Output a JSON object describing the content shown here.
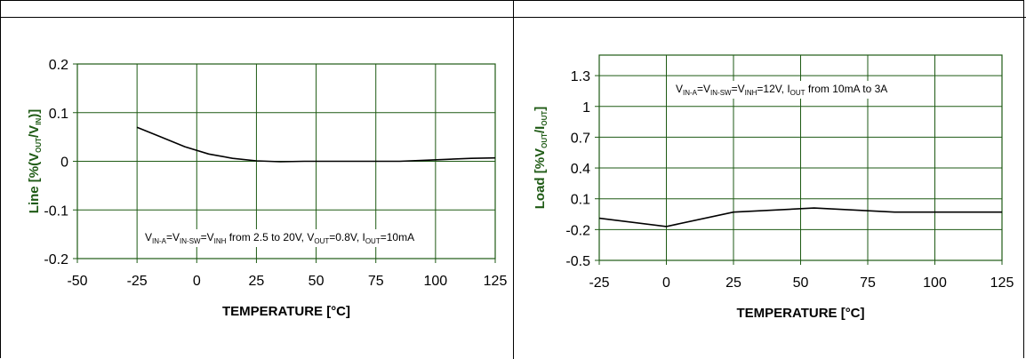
{
  "colors": {
    "grid": "#1e5a14",
    "line": "#000000",
    "axis_title": "#1e5a14"
  },
  "chart_data": [
    {
      "type": "line",
      "xlabel": "TEMPERATURE [°C]",
      "ylabel": {
        "pre": "Line [%(V",
        "s1": "OUT",
        "mid": "/V",
        "s2": "IN",
        "post": ")]"
      },
      "annotation": [
        {
          "t": "V"
        },
        {
          "t": "IN-A",
          "sub": true
        },
        {
          "t": "=V"
        },
        {
          "t": "IN-SW",
          "sub": true
        },
        {
          "t": "=V"
        },
        {
          "t": "INH",
          "sub": true
        },
        {
          "t": " from 2.5 to 20V, V"
        },
        {
          "t": "OUT",
          "sub": true
        },
        {
          "t": "=0.8V, I"
        },
        {
          "t": "OUT",
          "sub": true
        },
        {
          "t": "=10mA"
        }
      ],
      "xlim": [
        -50,
        125
      ],
      "ylim": [
        -0.2,
        0.2
      ],
      "xticks": [
        -50,
        -25,
        0,
        25,
        50,
        75,
        100,
        125
      ],
      "yticks": [
        -0.2,
        -0.1,
        0,
        0.1,
        0.2
      ],
      "ytick_labels": [
        "-0.2",
        "-0.1",
        "0",
        "0.1",
        "0.2"
      ],
      "x": [
        -25,
        -15,
        -5,
        5,
        15,
        25,
        35,
        45,
        55,
        65,
        75,
        85,
        95,
        105,
        115,
        125
      ],
      "y": [
        0.07,
        0.05,
        0.03,
        0.015,
        0.006,
        0.001,
        -0.001,
        0.0,
        0.0,
        0.0,
        0.0,
        0.0,
        0.002,
        0.004,
        0.006,
        0.007
      ]
    },
    {
      "type": "line",
      "xlabel": "TEMPERATURE [°C]",
      "ylabel": {
        "pre": "Load [%V",
        "s1": "OUT",
        "mid": "/I",
        "s2": "OUT",
        "post": "]"
      },
      "annotation": [
        {
          "t": "V"
        },
        {
          "t": "IN-A",
          "sub": true
        },
        {
          "t": "=V"
        },
        {
          "t": "IN-SW",
          "sub": true
        },
        {
          "t": "=V"
        },
        {
          "t": "INH",
          "sub": true
        },
        {
          "t": "=12V, I"
        },
        {
          "t": "OUT",
          "sub": true
        },
        {
          "t": " from 10mA to 3A"
        }
      ],
      "xlim": [
        -25,
        125
      ],
      "ylim": [
        -0.5,
        1.5
      ],
      "xticks": [
        -25,
        0,
        25,
        50,
        75,
        100,
        125
      ],
      "yticks": [
        -0.5,
        -0.2,
        0.1,
        0.4,
        0.7,
        1.0,
        1.3
      ],
      "ytick_labels": [
        "-0.5",
        "-0.2",
        "0.1",
        "0.4",
        "0.7",
        "1",
        "1.3"
      ],
      "x": [
        -25,
        0,
        25,
        55,
        85,
        125
      ],
      "y": [
        -0.09,
        -0.17,
        -0.03,
        0.01,
        -0.03,
        -0.03
      ]
    }
  ]
}
